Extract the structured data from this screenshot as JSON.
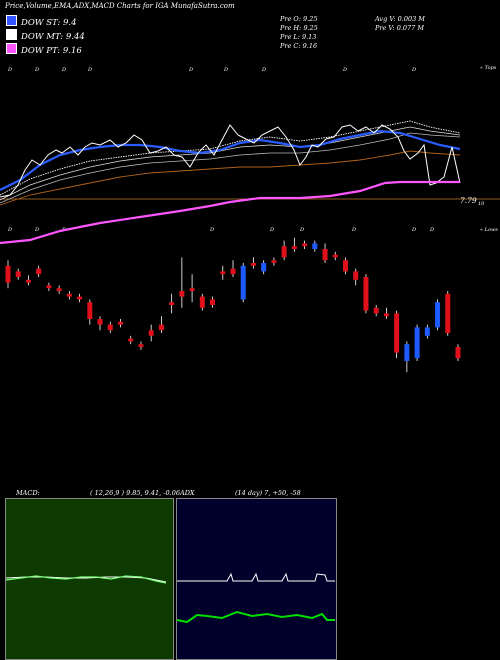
{
  "header": {
    "title": "Price,Volume,EMA,ADX,MACD Charts for IGA MunafaSutra.com"
  },
  "legend": [
    {
      "label": "DOW ST: 9.4",
      "color": "#3355ff"
    },
    {
      "label": "DOW MT: 9.44",
      "color": "#ffffff"
    },
    {
      "label": "DOW PT: 9.16",
      "color": "#ff55ff"
    }
  ],
  "stats": {
    "prev_open": "Pre   O: 9.25",
    "prev_high": "Pre   H: 9.25",
    "prev_low": "Pre   L: 9.13",
    "prev_close": "Pre   C: 9.16",
    "avg_volume": "Avg V: 0.003 M",
    "prev_volume": "Pre   V: 0.077 M"
  },
  "markers": {
    "tops_label": "« Tops",
    "lows_label": "« Lows",
    "price_level": "7.79",
    "price_level_sub": "10",
    "tops_glyphs": [
      "D",
      "D",
      "D",
      "D",
      "D",
      "D",
      "D",
      "D",
      "D",
      "D",
      "D"
    ],
    "lows_glyphs": [
      "D",
      "D",
      "D",
      "D",
      "D",
      "D",
      "D",
      "D",
      "D",
      "D",
      "D"
    ]
  },
  "macd": {
    "label": "MACD:",
    "params": "( 12,26,9 ) 9.85, 9.41, -0.06"
  },
  "adx": {
    "label": "ADX",
    "params": "(14  day) 7, +50, -58"
  },
  "colors": {
    "up": "#1e5bff",
    "down": "#e0101a",
    "ema_short": "#2a5cff",
    "ema_mid": "#ffffff",
    "ema_long": "#ff55ff",
    "macd_bg": "#0c3a00",
    "adx_bg": "#00002a",
    "adx_line": "#00e000"
  },
  "chart_data": {
    "type": "candlestick",
    "candles": [
      {
        "o": 10.15,
        "c": 10.45,
        "h": 10.55,
        "l": 10.05,
        "dir": "down"
      },
      {
        "o": 10.25,
        "c": 10.35,
        "h": 10.4,
        "l": 10.2,
        "dir": "down"
      },
      {
        "o": 10.2,
        "c": 10.15,
        "h": 10.28,
        "l": 10.1,
        "dir": "down"
      },
      {
        "o": 10.3,
        "c": 10.4,
        "h": 10.45,
        "l": 10.25,
        "dir": "down"
      },
      {
        "o": 10.05,
        "c": 10.1,
        "h": 10.15,
        "l": 10.0,
        "dir": "down"
      },
      {
        "o": 10.0,
        "c": 10.05,
        "h": 10.1,
        "l": 9.95,
        "dir": "down"
      },
      {
        "o": 9.9,
        "c": 9.95,
        "h": 10.0,
        "l": 9.85,
        "dir": "down"
      },
      {
        "o": 9.85,
        "c": 9.9,
        "h": 9.95,
        "l": 9.8,
        "dir": "down"
      },
      {
        "o": 9.5,
        "c": 9.8,
        "h": 9.85,
        "l": 9.4,
        "dir": "down"
      },
      {
        "o": 9.4,
        "c": 9.5,
        "h": 9.55,
        "l": 9.3,
        "dir": "down"
      },
      {
        "o": 9.3,
        "c": 9.4,
        "h": 9.45,
        "l": 9.25,
        "dir": "down"
      },
      {
        "o": 9.4,
        "c": 9.45,
        "h": 9.5,
        "l": 9.35,
        "dir": "down"
      },
      {
        "o": 9.1,
        "c": 9.15,
        "h": 9.2,
        "l": 9.05,
        "dir": "down"
      },
      {
        "o": 9.0,
        "c": 9.05,
        "h": 9.1,
        "l": 8.95,
        "dir": "down"
      },
      {
        "o": 9.2,
        "c": 9.3,
        "h": 9.4,
        "l": 9.1,
        "dir": "down"
      },
      {
        "o": 9.3,
        "c": 9.4,
        "h": 9.55,
        "l": 9.25,
        "dir": "down"
      },
      {
        "o": 9.75,
        "c": 9.8,
        "h": 9.95,
        "l": 9.6,
        "dir": "down"
      },
      {
        "o": 9.9,
        "c": 10.0,
        "h": 10.6,
        "l": 9.7,
        "dir": "down"
      },
      {
        "o": 10.0,
        "c": 10.05,
        "h": 10.3,
        "l": 9.8,
        "dir": "down"
      },
      {
        "o": 9.7,
        "c": 9.9,
        "h": 9.95,
        "l": 9.65,
        "dir": "down"
      },
      {
        "o": 9.75,
        "c": 9.85,
        "h": 9.9,
        "l": 9.7,
        "dir": "down"
      },
      {
        "o": 10.3,
        "c": 10.35,
        "h": 10.45,
        "l": 10.2,
        "dir": "down"
      },
      {
        "o": 10.3,
        "c": 10.4,
        "h": 10.55,
        "l": 10.25,
        "dir": "down"
      },
      {
        "o": 9.85,
        "c": 10.45,
        "h": 10.5,
        "l": 9.8,
        "dir": "up"
      },
      {
        "o": 10.45,
        "c": 10.5,
        "h": 10.6,
        "l": 10.4,
        "dir": "down"
      },
      {
        "o": 10.35,
        "c": 10.5,
        "h": 10.55,
        "l": 10.3,
        "dir": "up"
      },
      {
        "o": 10.5,
        "c": 10.55,
        "h": 10.6,
        "l": 10.45,
        "dir": "down"
      },
      {
        "o": 10.6,
        "c": 10.8,
        "h": 10.9,
        "l": 10.55,
        "dir": "down"
      },
      {
        "o": 10.75,
        "c": 10.8,
        "h": 10.95,
        "l": 10.7,
        "dir": "down"
      },
      {
        "o": 10.8,
        "c": 10.85,
        "h": 10.9,
        "l": 10.75,
        "dir": "down"
      },
      {
        "o": 10.75,
        "c": 10.85,
        "h": 10.9,
        "l": 10.7,
        "dir": "up"
      },
      {
        "o": 10.55,
        "c": 10.75,
        "h": 10.85,
        "l": 10.5,
        "dir": "down"
      },
      {
        "o": 10.6,
        "c": 10.65,
        "h": 10.7,
        "l": 10.55,
        "dir": "down"
      },
      {
        "o": 10.35,
        "c": 10.55,
        "h": 10.6,
        "l": 10.3,
        "dir": "down"
      },
      {
        "o": 10.2,
        "c": 10.35,
        "h": 10.4,
        "l": 10.1,
        "dir": "down"
      },
      {
        "o": 9.65,
        "c": 10.25,
        "h": 10.3,
        "l": 9.6,
        "dir": "down"
      },
      {
        "o": 9.6,
        "c": 9.7,
        "h": 9.75,
        "l": 9.55,
        "dir": "down"
      },
      {
        "o": 9.55,
        "c": 9.6,
        "h": 9.7,
        "l": 9.5,
        "dir": "down"
      },
      {
        "o": 8.9,
        "c": 9.6,
        "h": 9.65,
        "l": 8.8,
        "dir": "down"
      },
      {
        "o": 8.75,
        "c": 9.05,
        "h": 9.1,
        "l": 8.55,
        "dir": "up"
      },
      {
        "o": 8.8,
        "c": 9.35,
        "h": 9.4,
        "l": 8.75,
        "dir": "up"
      },
      {
        "o": 9.2,
        "c": 9.35,
        "h": 9.4,
        "l": 9.15,
        "dir": "up"
      },
      {
        "o": 9.35,
        "c": 9.8,
        "h": 9.85,
        "l": 9.3,
        "dir": "up"
      },
      {
        "o": 9.25,
        "c": 9.95,
        "h": 10.0,
        "l": 9.2,
        "dir": "down"
      },
      {
        "o": 8.8,
        "c": 9.0,
        "h": 9.05,
        "l": 8.75,
        "dir": "down"
      }
    ]
  }
}
